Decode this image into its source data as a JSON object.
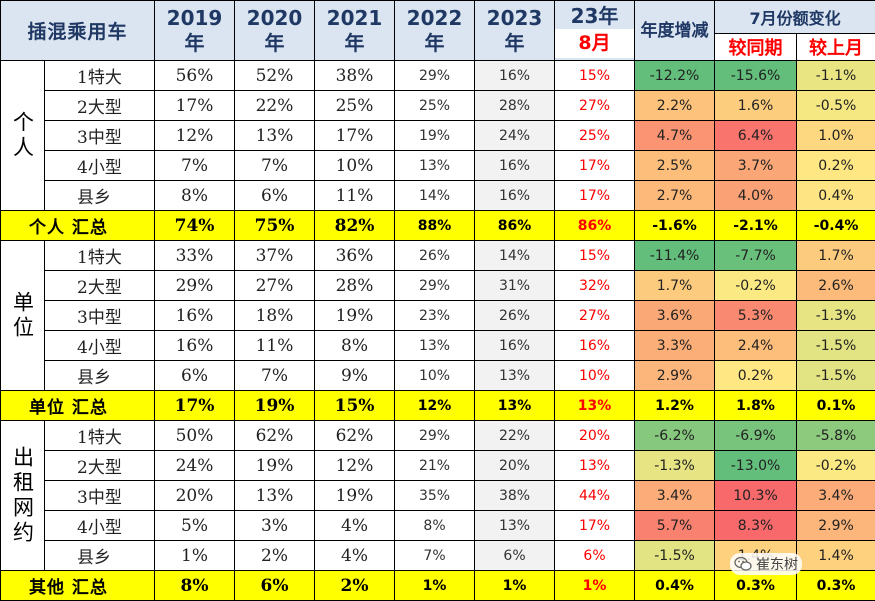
{
  "header": {
    "title": "插混乘用车",
    "years": [
      {
        "num": "2019",
        "suffix": "年"
      },
      {
        "num": "2020",
        "suffix": "年"
      },
      {
        "num": "2021",
        "suffix": "年"
      },
      {
        "num": "2022",
        "suffix": "年"
      },
      {
        "num": "2023",
        "suffix": "年"
      }
    ],
    "current": {
      "year": "23年",
      "month": "8月"
    },
    "annual_change": "年度增减",
    "july_change": "7月份额变化",
    "yoy": "较同期",
    "mom": "较上月"
  },
  "colors": {
    "header_bg": "#dbe5f1",
    "total_bg": "#ffff00",
    "accent_red": "#ff0000",
    "green": "#63be7b",
    "yellow": "#ffeb84",
    "red": "#f8696b"
  },
  "groups": [
    {
      "label": "个人",
      "total_label": "个人  汇总",
      "rows": [
        {
          "segment": "1特大",
          "y2019": "56%",
          "y2020": "52%",
          "y2021": "38%",
          "y2022": "29%",
          "y2023": "16%",
          "aug": "15%",
          "annual": "-12.2%",
          "yoy": "-15.6%",
          "mom": "-1.1%"
        },
        {
          "segment": "2大型",
          "y2019": "17%",
          "y2020": "22%",
          "y2021": "25%",
          "y2022": "25%",
          "y2023": "28%",
          "aug": "27%",
          "annual": "2.2%",
          "yoy": "1.6%",
          "mom": "-0.5%"
        },
        {
          "segment": "3中型",
          "y2019": "12%",
          "y2020": "13%",
          "y2021": "17%",
          "y2022": "19%",
          "y2023": "24%",
          "aug": "25%",
          "annual": "4.7%",
          "yoy": "6.4%",
          "mom": "1.0%"
        },
        {
          "segment": "4小型",
          "y2019": "7%",
          "y2020": "7%",
          "y2021": "10%",
          "y2022": "13%",
          "y2023": "16%",
          "aug": "17%",
          "annual": "2.5%",
          "yoy": "3.7%",
          "mom": "0.2%"
        },
        {
          "segment": "县乡",
          "y2019": "8%",
          "y2020": "6%",
          "y2021": "11%",
          "y2022": "14%",
          "y2023": "16%",
          "aug": "17%",
          "annual": "2.7%",
          "yoy": "4.0%",
          "mom": "0.4%"
        }
      ],
      "total": {
        "y2019": "74%",
        "y2020": "75%",
        "y2021": "82%",
        "y2022": "88%",
        "y2023": "86%",
        "aug": "86%",
        "annual": "-1.6%",
        "yoy": "-2.1%",
        "mom": "-0.4%"
      }
    },
    {
      "label": "单位",
      "total_label": "单位  汇总",
      "rows": [
        {
          "segment": "1特大",
          "y2019": "33%",
          "y2020": "37%",
          "y2021": "36%",
          "y2022": "26%",
          "y2023": "14%",
          "aug": "15%",
          "annual": "-11.4%",
          "yoy": "-7.7%",
          "mom": "1.7%"
        },
        {
          "segment": "2大型",
          "y2019": "29%",
          "y2020": "27%",
          "y2021": "28%",
          "y2022": "29%",
          "y2023": "31%",
          "aug": "32%",
          "annual": "1.7%",
          "yoy": "-0.2%",
          "mom": "2.6%"
        },
        {
          "segment": "3中型",
          "y2019": "16%",
          "y2020": "18%",
          "y2021": "19%",
          "y2022": "23%",
          "y2023": "26%",
          "aug": "27%",
          "annual": "3.6%",
          "yoy": "5.3%",
          "mom": "-1.3%"
        },
        {
          "segment": "4小型",
          "y2019": "16%",
          "y2020": "11%",
          "y2021": "8%",
          "y2022": "13%",
          "y2023": "16%",
          "aug": "16%",
          "annual": "3.3%",
          "yoy": "2.4%",
          "mom": "-1.5%"
        },
        {
          "segment": "县乡",
          "y2019": "6%",
          "y2020": "7%",
          "y2021": "9%",
          "y2022": "10%",
          "y2023": "13%",
          "aug": "10%",
          "annual": "2.9%",
          "yoy": "0.2%",
          "mom": "-1.5%"
        }
      ],
      "total": {
        "y2019": "17%",
        "y2020": "19%",
        "y2021": "15%",
        "y2022": "12%",
        "y2023": "13%",
        "aug": "13%",
        "annual": "1.2%",
        "yoy": "1.8%",
        "mom": "0.1%"
      }
    },
    {
      "label": "出租网约",
      "total_label": "其他  汇总",
      "rows": [
        {
          "segment": "1特大",
          "y2019": "50%",
          "y2020": "62%",
          "y2021": "62%",
          "y2022": "29%",
          "y2023": "22%",
          "aug": "20%",
          "annual": "-6.2%",
          "yoy": "-6.9%",
          "mom": "-5.8%"
        },
        {
          "segment": "2大型",
          "y2019": "24%",
          "y2020": "19%",
          "y2021": "12%",
          "y2022": "21%",
          "y2023": "20%",
          "aug": "13%",
          "annual": "-1.3%",
          "yoy": "-13.0%",
          "mom": "-0.2%"
        },
        {
          "segment": "3中型",
          "y2019": "20%",
          "y2020": "13%",
          "y2021": "19%",
          "y2022": "35%",
          "y2023": "38%",
          "aug": "44%",
          "annual": "3.4%",
          "yoy": "10.3%",
          "mom": "3.4%"
        },
        {
          "segment": "4小型",
          "y2019": "5%",
          "y2020": "3%",
          "y2021": "4%",
          "y2022": "8%",
          "y2023": "13%",
          "aug": "17%",
          "annual": "5.7%",
          "yoy": "8.3%",
          "mom": "2.9%"
        },
        {
          "segment": "县乡",
          "y2019": "1%",
          "y2020": "2%",
          "y2021": "4%",
          "y2022": "7%",
          "y2023": "6%",
          "aug": "6%",
          "annual": "-1.5%",
          "yoy": "1.4%",
          "mom": "1.4%"
        }
      ],
      "total": {
        "y2019": "8%",
        "y2020": "6%",
        "y2021": "2%",
        "y2022": "1%",
        "y2023": "1%",
        "aug": "1%",
        "annual": "0.4%",
        "yoy": "0.3%",
        "mom": "0.3%"
      }
    }
  ],
  "watermark": {
    "icon": "wechat-icon",
    "text": "崔东树"
  }
}
